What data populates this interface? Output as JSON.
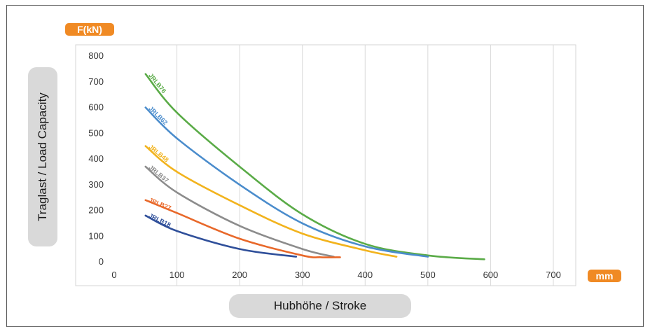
{
  "chart_data": {
    "type": "line",
    "y_unit": "F(kN)",
    "x_unit": "mm",
    "ylabel": "Traglast / Load Capacity",
    "xlabel": "Hubhöhe / Stroke",
    "xlim": [
      0,
      700
    ],
    "ylim": [
      0,
      800
    ],
    "x_ticks": [
      "0",
      "100",
      "200",
      "300",
      "400",
      "500",
      "600",
      "700"
    ],
    "y_ticks": [
      "0",
      "100",
      "200",
      "300",
      "400",
      "500",
      "600",
      "700",
      "800"
    ],
    "grid": "vertical",
    "legend": "labels on lines",
    "series": [
      {
        "name": "JRLB76",
        "color": "#5aab47",
        "x": [
          50,
          100,
          200,
          300,
          400,
          500,
          590
        ],
        "y": [
          730,
          580,
          370,
          185,
          70,
          25,
          10
        ]
      },
      {
        "name": "JRLB62",
        "color": "#4a8ccc",
        "x": [
          50,
          100,
          200,
          300,
          400,
          500
        ],
        "y": [
          600,
          480,
          300,
          150,
          60,
          20
        ]
      },
      {
        "name": "JRLB48",
        "color": "#f2b31d",
        "x": [
          50,
          100,
          200,
          300,
          400,
          450
        ],
        "y": [
          450,
          350,
          220,
          110,
          45,
          20
        ]
      },
      {
        "name": "JRLB37",
        "color": "#8c8c8c",
        "x": [
          50,
          100,
          200,
          300,
          350
        ],
        "y": [
          370,
          270,
          140,
          50,
          20
        ]
      },
      {
        "name": "JRLB27",
        "color": "#e8682a",
        "x": [
          50,
          100,
          200,
          300,
          330,
          360
        ],
        "y": [
          240,
          190,
          90,
          25,
          18,
          18
        ]
      },
      {
        "name": "JRLB18",
        "color": "#2f4f9a",
        "x": [
          50,
          100,
          200,
          290
        ],
        "y": [
          180,
          120,
          50,
          20
        ]
      }
    ]
  }
}
